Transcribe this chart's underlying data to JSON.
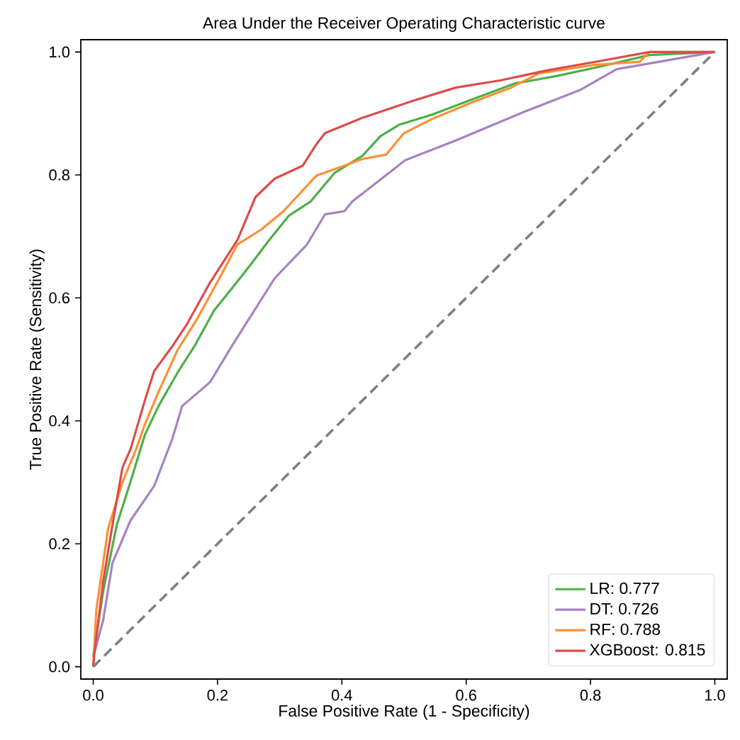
{
  "chart_data": {
    "type": "line",
    "title": "Area Under the Receiver Operating Characteristic curve",
    "xlabel": "False Positive Rate (1 - Specificity)",
    "ylabel": "True Positive Rate (Sensitivity)",
    "xlim": [
      -0.02,
      1.02
    ],
    "ylim": [
      -0.02,
      1.02
    ],
    "xticks": [
      {
        "value": 0,
        "label": "0.0"
      },
      {
        "value": 0.2,
        "label": "0.2"
      },
      {
        "value": 0.4,
        "label": "0.4"
      },
      {
        "value": 0.6,
        "label": "0.6"
      },
      {
        "value": 0.8,
        "label": "0.8"
      },
      {
        "value": 1,
        "label": "1.0"
      }
    ],
    "yticks": [
      {
        "value": 0,
        "label": "0.0"
      },
      {
        "value": 0.2,
        "label": "0.2"
      },
      {
        "value": 0.4,
        "label": "0.4"
      },
      {
        "value": 0.6,
        "label": "0.6"
      },
      {
        "value": 0.8,
        "label": "0.8"
      },
      {
        "value": 1,
        "label": "1.0"
      }
    ],
    "legend": "bottom right",
    "grid": false,
    "marker": "none",
    "series": [
      {
        "name": "LR: 0.777",
        "color": "#4daf4a",
        "x": [
          0,
          0.016,
          0.038,
          0.06,
          0.083,
          0.105,
          0.136,
          0.165,
          0.194,
          0.225,
          0.254,
          0.283,
          0.315,
          0.35,
          0.388,
          0.433,
          0.462,
          0.493,
          0.545,
          0.618,
          0.679,
          0.746,
          0.819,
          0.895,
          1
        ],
        "values": [
          0.016,
          0.123,
          0.231,
          0.301,
          0.377,
          0.424,
          0.479,
          0.525,
          0.579,
          0.618,
          0.655,
          0.694,
          0.734,
          0.757,
          0.803,
          0.831,
          0.863,
          0.882,
          0.898,
          0.926,
          0.949,
          0.961,
          0.977,
          0.995,
          1
        ]
      },
      {
        "name": "DT: 0.726",
        "color": "#a782c3",
        "x": [
          0,
          0.016,
          0.031,
          0.06,
          0.098,
          0.127,
          0.143,
          0.188,
          0.225,
          0.292,
          0.344,
          0.373,
          0.404,
          0.417,
          0.502,
          0.583,
          0.694,
          0.783,
          0.842,
          1
        ],
        "values": [
          0.016,
          0.076,
          0.169,
          0.238,
          0.294,
          0.37,
          0.424,
          0.463,
          0.525,
          0.632,
          0.687,
          0.736,
          0.741,
          0.757,
          0.824,
          0.856,
          0.903,
          0.938,
          0.972,
          1
        ]
      },
      {
        "name": "RF: 0.788",
        "color": "#ff8f33",
        "x": [
          0,
          0.005,
          0.024,
          0.047,
          0.069,
          0.083,
          0.105,
          0.136,
          0.165,
          0.203,
          0.232,
          0.27,
          0.306,
          0.359,
          0.404,
          0.433,
          0.471,
          0.5,
          0.545,
          0.612,
          0.672,
          0.717,
          0.806,
          0.879,
          0.895,
          1
        ],
        "values": [
          0,
          0.093,
          0.225,
          0.3,
          0.354,
          0.394,
          0.447,
          0.516,
          0.562,
          0.632,
          0.687,
          0.711,
          0.741,
          0.799,
          0.815,
          0.826,
          0.833,
          0.868,
          0.891,
          0.919,
          0.942,
          0.965,
          0.979,
          0.984,
          1,
          1
        ]
      },
      {
        "name": "XGBoost: 0.815",
        "color": "#de4b4b",
        "x": [
          0,
          0.002,
          0.016,
          0.031,
          0.047,
          0.06,
          0.083,
          0.098,
          0.127,
          0.15,
          0.188,
          0.232,
          0.261,
          0.292,
          0.337,
          0.359,
          0.373,
          0.433,
          0.516,
          0.583,
          0.656,
          0.73,
          0.819,
          0.895,
          1
        ],
        "values": [
          0,
          0.023,
          0.139,
          0.231,
          0.324,
          0.354,
          0.433,
          0.481,
          0.521,
          0.556,
          0.625,
          0.694,
          0.764,
          0.794,
          0.815,
          0.85,
          0.868,
          0.893,
          0.921,
          0.942,
          0.954,
          0.97,
          0.986,
          1,
          1
        ]
      },
      {
        "color": "#808080",
        "line_style": "dashed",
        "x": [
          0,
          1
        ],
        "values": [
          0,
          1
        ]
      }
    ]
  }
}
